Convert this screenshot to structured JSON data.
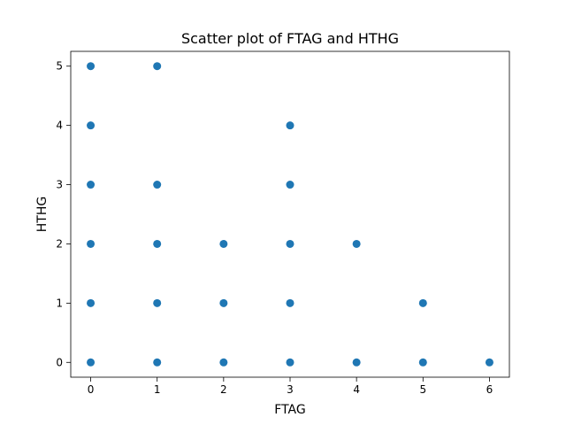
{
  "chart_data": {
    "type": "scatter",
    "title": "Scatter plot of FTAG and HTHG",
    "xlabel": "FTAG",
    "ylabel": "HTHG",
    "xlim": [
      -0.3,
      6.3
    ],
    "ylim": [
      -0.25,
      5.25
    ],
    "xticks": [
      "0",
      "1",
      "2",
      "3",
      "4",
      "5",
      "6"
    ],
    "yticks": [
      "0",
      "1",
      "2",
      "3",
      "4",
      "5"
    ],
    "grid": false,
    "series": [
      {
        "color": "#1f77b4",
        "points": [
          {
            "x": 0,
            "y": 0
          },
          {
            "x": 0,
            "y": 1
          },
          {
            "x": 0,
            "y": 2
          },
          {
            "x": 0,
            "y": 3
          },
          {
            "x": 0,
            "y": 4
          },
          {
            "x": 0,
            "y": 5
          },
          {
            "x": 1,
            "y": 0
          },
          {
            "x": 1,
            "y": 1
          },
          {
            "x": 1,
            "y": 2
          },
          {
            "x": 1,
            "y": 3
          },
          {
            "x": 1,
            "y": 5
          },
          {
            "x": 2,
            "y": 0
          },
          {
            "x": 2,
            "y": 1
          },
          {
            "x": 2,
            "y": 2
          },
          {
            "x": 3,
            "y": 0
          },
          {
            "x": 3,
            "y": 1
          },
          {
            "x": 3,
            "y": 2
          },
          {
            "x": 3,
            "y": 3
          },
          {
            "x": 3,
            "y": 4
          },
          {
            "x": 4,
            "y": 0
          },
          {
            "x": 4,
            "y": 2
          },
          {
            "x": 5,
            "y": 0
          },
          {
            "x": 5,
            "y": 1
          },
          {
            "x": 6,
            "y": 0
          }
        ]
      }
    ]
  }
}
